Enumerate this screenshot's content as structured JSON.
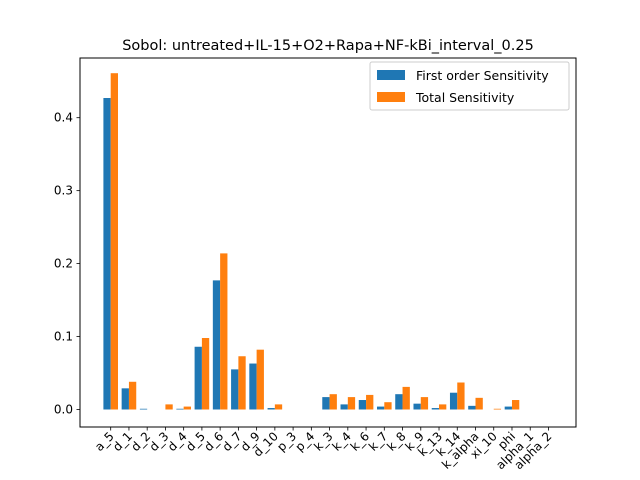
{
  "chart_data": {
    "type": "bar",
    "title": "Sobol: untreated+IL-15+O2+Rapa+NF-kBi_interval_0.25",
    "xlabel": "",
    "ylabel": "",
    "ylim": [
      -0.024,
      0.47
    ],
    "yticks": [
      "0.0",
      "0.1",
      "0.2",
      "0.3",
      "0.4"
    ],
    "yticks_values": [
      0,
      0.1,
      0.2,
      0.3,
      0.4
    ],
    "categories": [
      "a_5",
      "d_1",
      "d_2",
      "d_3",
      "d_4",
      "d_5",
      "d_6",
      "d_7",
      "d_9",
      "d_10",
      "p_3",
      "p_4",
      "k_3",
      "k_4",
      "k_6",
      "k_7",
      "k_8",
      "k_9",
      "k_13",
      "k_14",
      "k_alpha",
      "xi_10",
      "phi",
      "alpha_1",
      "alpha_2"
    ],
    "series": [
      {
        "name": "First order Sensitivity",
        "color": "#1f77b4",
        "values": [
          0.427,
          0.029,
          0.001,
          0.0,
          0.001,
          0.086,
          0.177,
          0.055,
          0.063,
          0.002,
          0.0,
          0.0,
          0.017,
          0.007,
          0.013,
          0.004,
          0.021,
          0.008,
          0.002,
          0.023,
          0.005,
          0.0,
          0.004,
          0.0,
          0.0
        ]
      },
      {
        "name": "Total Sensitivity",
        "color": "#ff7f0e",
        "values": [
          0.461,
          0.038,
          0.0,
          0.007,
          0.004,
          0.098,
          0.214,
          0.073,
          0.082,
          0.007,
          0.0,
          0.0,
          0.021,
          0.017,
          0.02,
          0.01,
          0.031,
          0.017,
          0.007,
          0.037,
          0.016,
          0.001,
          0.013,
          0.0,
          0.0
        ]
      }
    ],
    "legend_position": "upper-right",
    "grid": false
  }
}
